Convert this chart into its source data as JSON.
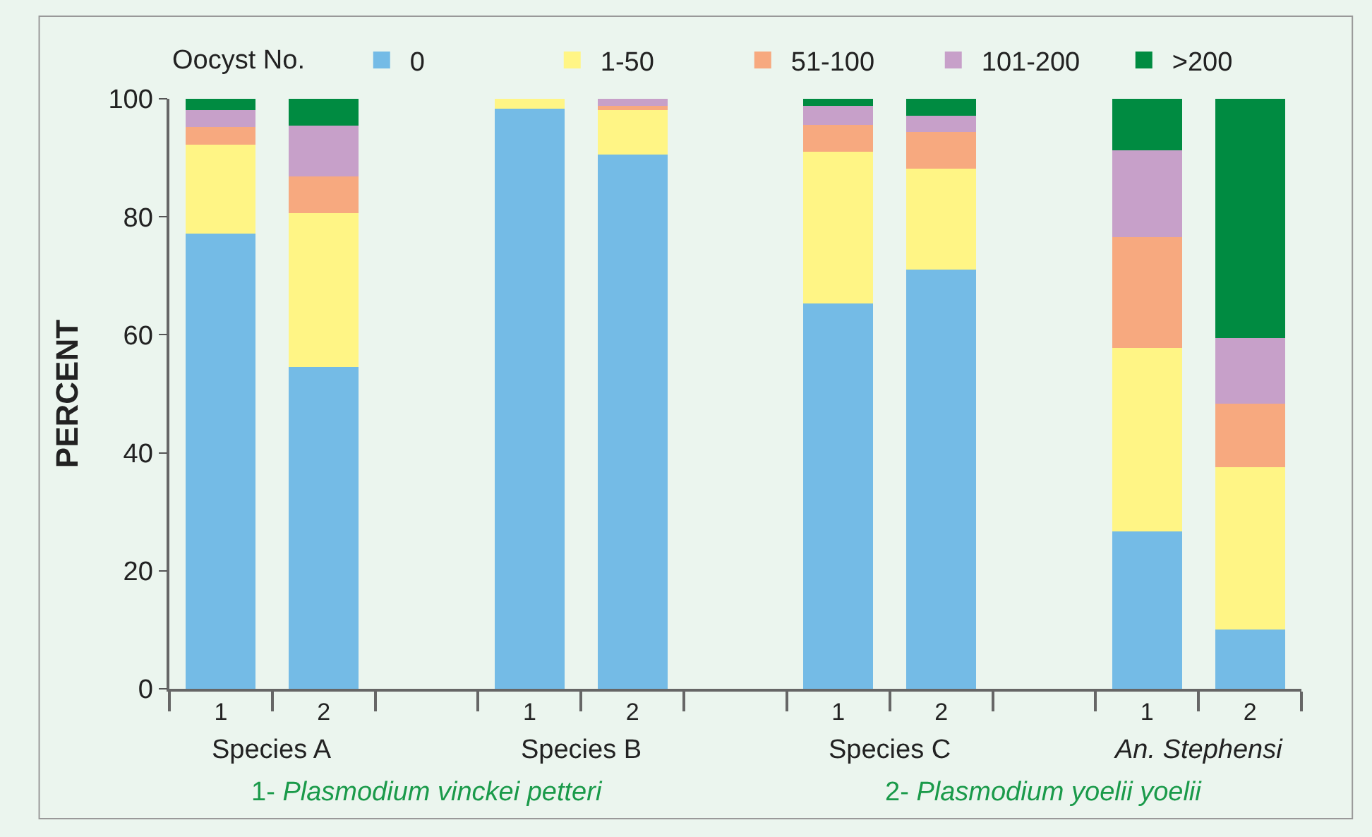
{
  "chart_data": {
    "type": "bar",
    "stacked": true,
    "ylabel": "PERCENT",
    "legend_title": "Oocyst No.",
    "legend": "top",
    "categories": [
      "1",
      "2",
      null,
      "1",
      "2",
      null,
      "1",
      "2",
      null,
      "1",
      "2"
    ],
    "series": [
      {
        "name": "0",
        "color": "#74bbe6",
        "values": [
          77.2,
          54.6,
          null,
          98.3,
          90.5,
          null,
          65.3,
          71.1,
          null,
          26.7,
          10.0
        ]
      },
      {
        "name": "1-50",
        "color": "#fff585",
        "values": [
          15.0,
          26.0,
          null,
          1.7,
          7.6,
          null,
          25.7,
          17.0,
          null,
          31.1,
          27.6
        ]
      },
      {
        "name": "51-100",
        "color": "#f7a97f",
        "values": [
          3.0,
          6.3,
          null,
          0,
          0.7,
          null,
          4.6,
          6.3,
          null,
          18.7,
          10.7
        ]
      },
      {
        "name": "101-200",
        "color": "#c7a0c9",
        "values": [
          2.9,
          8.5,
          null,
          0,
          1.2,
          null,
          3.2,
          2.7,
          null,
          14.8,
          11.2
        ]
      },
      {
        "name": ">200",
        "color": "#008b41",
        "values": [
          1.9,
          4.6,
          null,
          0,
          0,
          null,
          1.2,
          2.9,
          null,
          8.7,
          40.5
        ]
      }
    ],
    "ylim": [
      0,
      100
    ],
    "yticks": [
      0,
      20,
      40,
      60,
      80,
      100
    ],
    "grid": false,
    "annotations": [
      "Species A",
      "Species B",
      "Species C",
      "An. Stephensi",
      "1- Plasmodium vinckei petteri",
      "2- Plasmodium yoelii yoelii"
    ]
  }
}
